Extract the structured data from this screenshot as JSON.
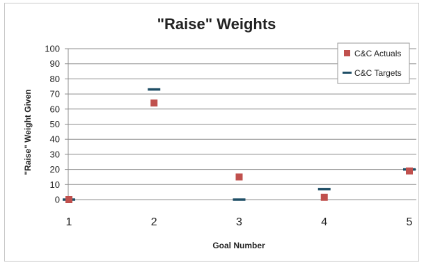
{
  "chart_data": {
    "type": "scatter",
    "title": "\"Raise\" Weights",
    "xlabel": "Goal Number",
    "ylabel": "\"Raise\" Weight Given",
    "x": [
      1,
      2,
      3,
      4,
      5
    ],
    "x_ticks": [
      "1",
      "2",
      "3",
      "4",
      "5"
    ],
    "ylim": [
      0,
      100
    ],
    "y_ticks": [
      "0",
      "10",
      "20",
      "30",
      "40",
      "50",
      "60",
      "70",
      "80",
      "90",
      "100"
    ],
    "grid": true,
    "legend_position": "top-right",
    "series": [
      {
        "name": "C&C Actuals",
        "marker": "square",
        "color": "#c0504d",
        "values": [
          0,
          64,
          15,
          1.5,
          19
        ]
      },
      {
        "name": "C&C Targets",
        "marker": "dash",
        "color": "#1f4e66",
        "values": [
          0,
          73,
          0,
          7,
          20
        ]
      }
    ]
  }
}
